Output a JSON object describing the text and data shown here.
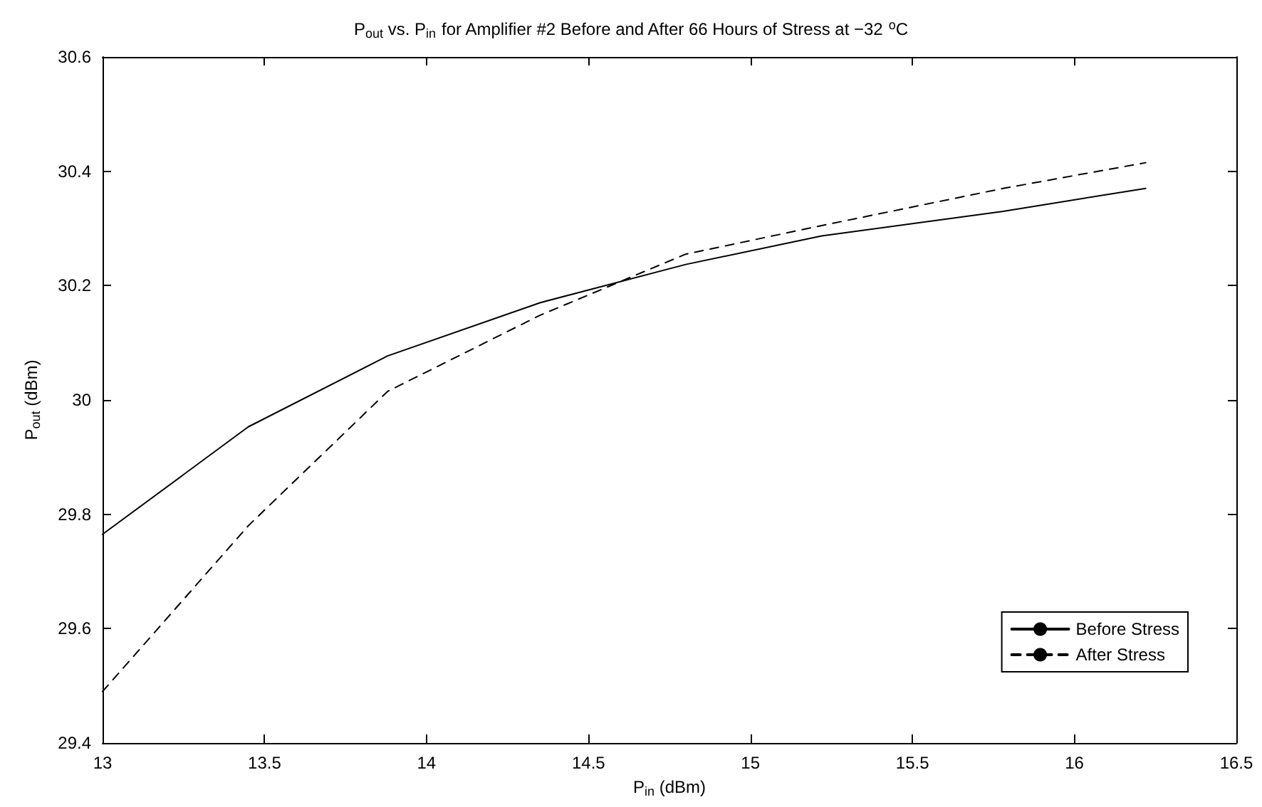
{
  "chart_data": {
    "type": "line",
    "title": "P$_{out}$ vs. P$_{in}$ for Amplifier #2 Before and After 66 Hours of Stress at −32 $^{o}$C",
    "xlabel": "P$_{in}$ (dBm)",
    "ylabel": "P$_{out}$ (dBm)",
    "x": [
      13,
      13.45,
      13.88,
      14.35,
      14.8,
      15.22,
      15.78,
      16.22
    ],
    "series": [
      {
        "name": "Before Stress",
        "color": "#000000",
        "line_style": "solid",
        "values": [
          29.765,
          29.953,
          30.077,
          30.17,
          30.237,
          30.287,
          30.33,
          30.37
        ]
      },
      {
        "name": "After Stress",
        "color": "#000000",
        "line_style": "dashed",
        "values": [
          29.49,
          29.78,
          30.015,
          30.148,
          30.255,
          30.305,
          30.37,
          30.415
        ]
      }
    ],
    "xlim": [
      13,
      16.5
    ],
    "xticks": [
      13,
      13.5,
      14,
      14.5,
      15,
      15.5,
      16,
      16.5
    ],
    "ylim": [
      29.4,
      30.6
    ],
    "yticks": [
      29.4,
      29.6,
      29.8,
      30,
      30.2,
      30.4,
      30.6
    ],
    "grid": false,
    "legend": "bottom right",
    "marker": "none"
  }
}
